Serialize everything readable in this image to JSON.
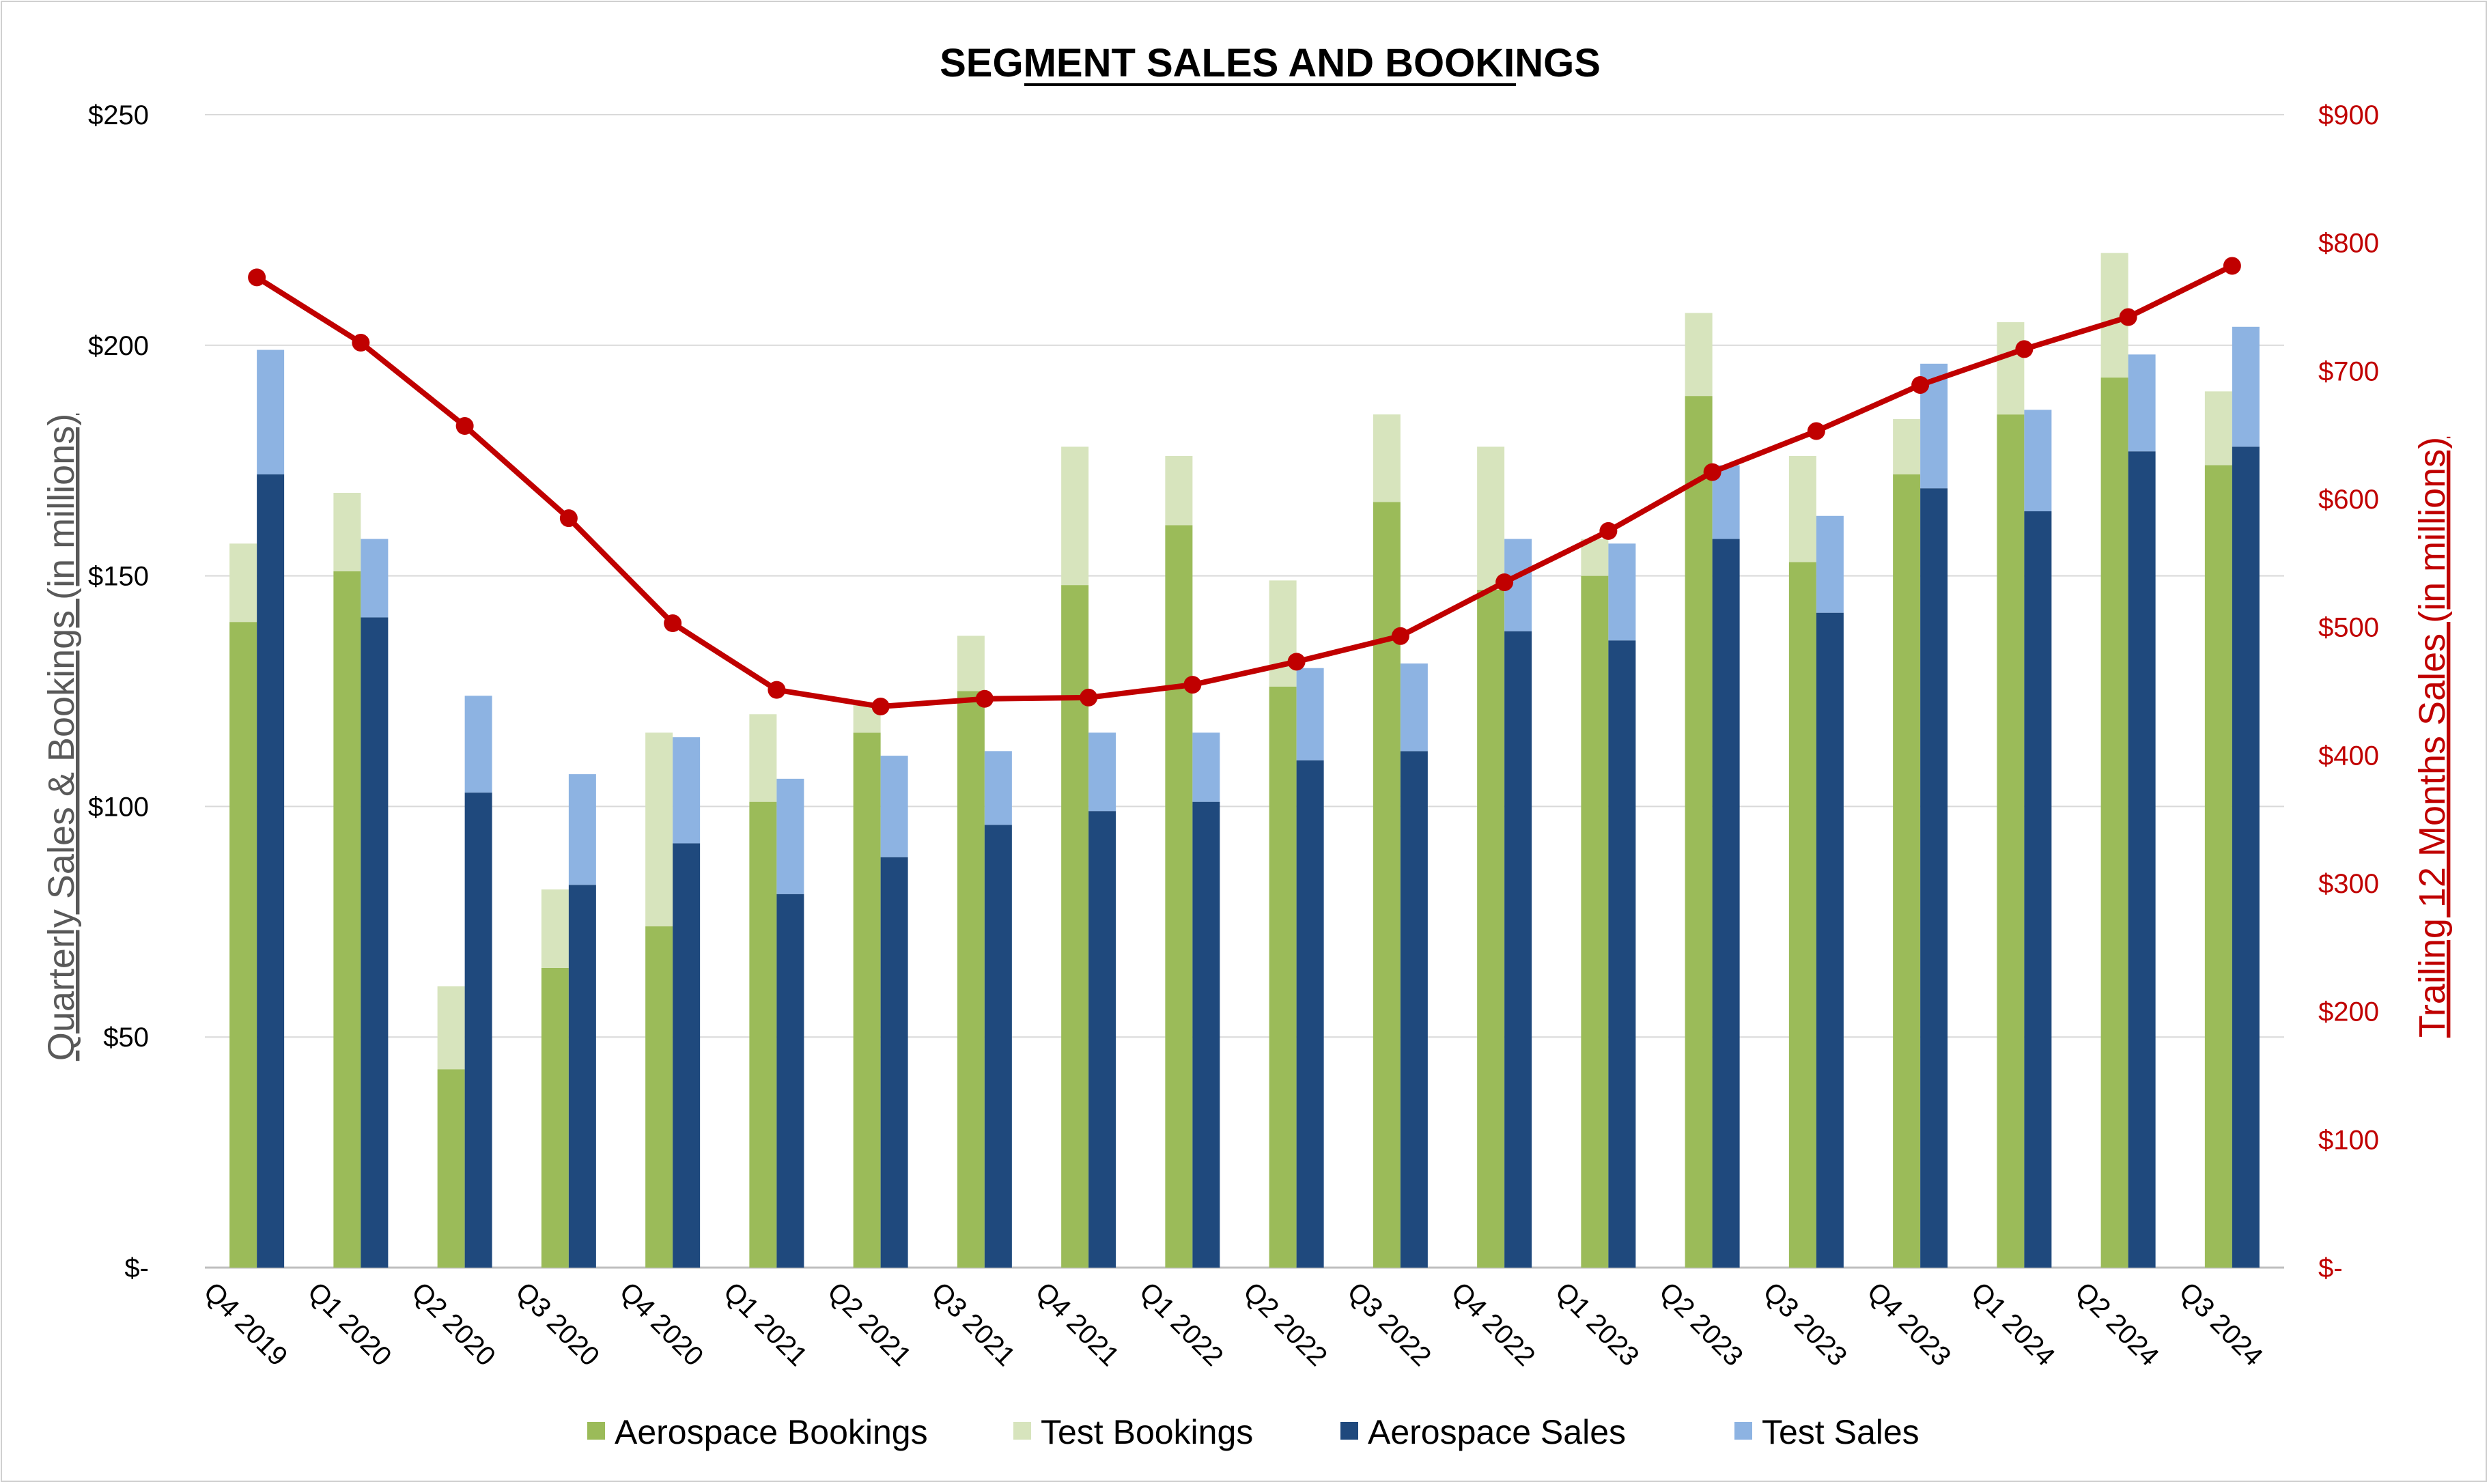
{
  "chart_data": {
    "type": "bar",
    "title": "SEGMENT SALES AND BOOKINGS",
    "ylabel": "Quarterly Sales & Bookings (in millions)",
    "y2label": "Trailing 12 Months Sales (in millions)",
    "ylim": [
      0,
      250
    ],
    "y2lim": [
      0,
      900
    ],
    "yticks": [
      {
        "value": 0,
        "label": "$-"
      },
      {
        "value": 50,
        "label": "$50"
      },
      {
        "value": 100,
        "label": "$100"
      },
      {
        "value": 150,
        "label": "$150"
      },
      {
        "value": 200,
        "label": "$200"
      },
      {
        "value": 250,
        "label": "$250"
      }
    ],
    "y2ticks": [
      {
        "value": 0,
        "label": "$-"
      },
      {
        "value": 100,
        "label": "$100"
      },
      {
        "value": 200,
        "label": "$200"
      },
      {
        "value": 300,
        "label": "$300"
      },
      {
        "value": 400,
        "label": "$400"
      },
      {
        "value": 500,
        "label": "$500"
      },
      {
        "value": 600,
        "label": "$600"
      },
      {
        "value": 700,
        "label": "$700"
      },
      {
        "value": 800,
        "label": "$800"
      },
      {
        "value": 900,
        "label": "$900"
      }
    ],
    "grid": true,
    "legend_position": "bottom",
    "categories": [
      "Q4 2019",
      "Q1 2020",
      "Q2 2020",
      "Q3 2020",
      "Q4 2020",
      "Q1 2021",
      "Q2 2021",
      "Q3 2021",
      "Q4 2021",
      "Q1 2022",
      "Q2 2022",
      "Q3 2022",
      "Q4 2022",
      "Q1 2023",
      "Q2 2023",
      "Q3 2023",
      "Q4 2023",
      "Q1 2024",
      "Q2 2024",
      "Q3 2024"
    ],
    "series": [
      {
        "name": "Aerospace Bookings",
        "type": "stacked-bar",
        "stack": "bookings",
        "axis": "left",
        "color": "#9bbb59",
        "values": [
          140,
          151,
          43,
          65,
          74,
          101,
          116,
          125,
          148,
          161,
          126,
          166,
          147,
          150,
          189,
          153,
          172,
          185,
          193,
          174
        ]
      },
      {
        "name": "Test Bookings",
        "type": "stacked-bar",
        "stack": "bookings",
        "axis": "left",
        "color": "#d7e4bd",
        "values": [
          17,
          17,
          18,
          17,
          42,
          19,
          6,
          12,
          30,
          15,
          23,
          19,
          31,
          8,
          18,
          23,
          12,
          20,
          27,
          16
        ]
      },
      {
        "name": "Aerospace Sales",
        "type": "stacked-bar",
        "stack": "sales",
        "axis": "left",
        "color": "#1f497d",
        "values": [
          172,
          141,
          103,
          83,
          92,
          81,
          89,
          96,
          99,
          101,
          110,
          112,
          138,
          136,
          158,
          142,
          169,
          164,
          177,
          178
        ]
      },
      {
        "name": "Test Sales",
        "type": "stacked-bar",
        "stack": "sales",
        "axis": "left",
        "color": "#8db3e2",
        "values": [
          27,
          17,
          21,
          24,
          23,
          25,
          22,
          16,
          17,
          15,
          20,
          19,
          20,
          21,
          16,
          21,
          27,
          22,
          21,
          26
        ]
      },
      {
        "name": "Trailing 12 Months Sales",
        "type": "line",
        "axis": "right",
        "color": "#c00000",
        "values": [
          773,
          722,
          657,
          585,
          503,
          451,
          438,
          444,
          445,
          455,
          473,
          493,
          535,
          575,
          621,
          653,
          689,
          717,
          742,
          782
        ]
      }
    ]
  }
}
